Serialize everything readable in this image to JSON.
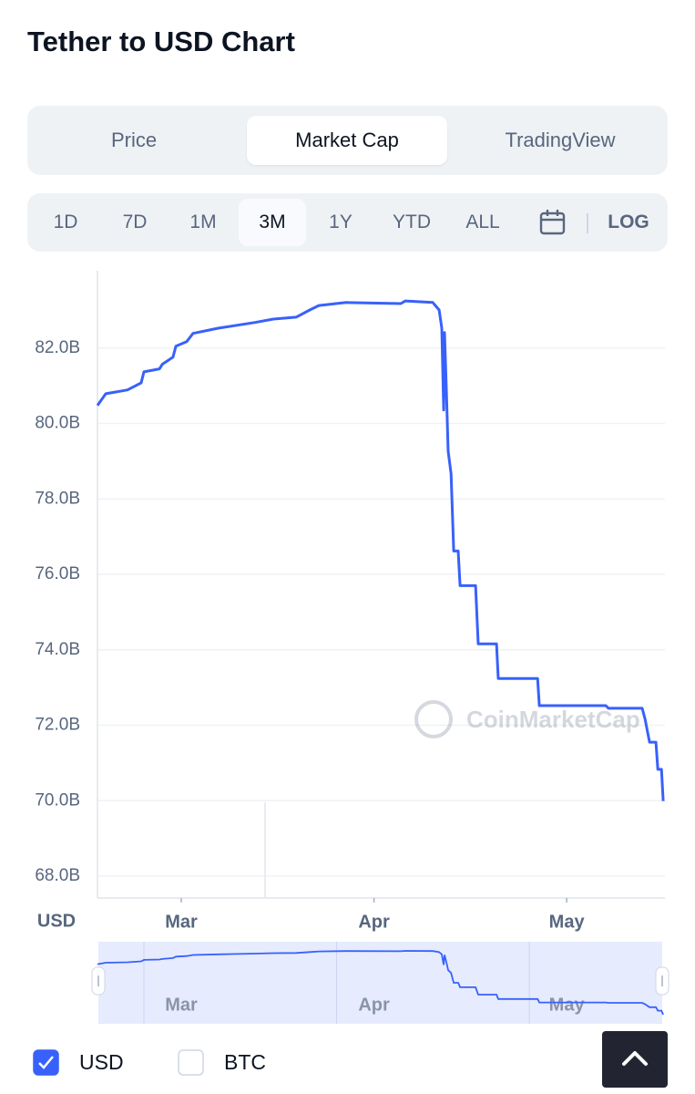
{
  "header": {
    "title": "Tether to USD Chart"
  },
  "tabs": {
    "items": [
      "Price",
      "Market Cap",
      "TradingView"
    ],
    "active": 1
  },
  "ranges": {
    "items": [
      "1D",
      "7D",
      "1M",
      "3M",
      "1Y",
      "YTD",
      "ALL"
    ],
    "active": 3,
    "log": "LOG"
  },
  "chart_data": {
    "type": "line",
    "y_label": "USD",
    "watermark": "CoinMarketCap",
    "x": [
      2.565,
      2.608,
      2.721,
      2.792,
      2.806,
      2.887,
      2.901,
      2.957,
      2.972,
      3.028,
      3.061,
      3.194,
      3.383,
      3.478,
      3.596,
      3.667,
      3.714,
      3.856,
      4.139,
      4.163,
      4.305,
      4.338,
      4.352,
      4.362,
      4.366,
      4.376,
      4.385,
      4.4,
      4.414,
      4.437,
      4.447,
      4.527,
      4.541,
      4.636,
      4.645,
      4.849,
      4.858,
      5.203,
      5.217,
      5.392,
      5.407,
      5.43,
      5.463,
      5.473,
      5.492,
      5.501
    ],
    "series": [
      {
        "name": "USD",
        "color": "#3861fb",
        "values": [
          80.48,
          80.79,
          80.89,
          81.08,
          81.37,
          81.45,
          81.57,
          81.76,
          82.05,
          82.17,
          82.39,
          82.53,
          82.68,
          82.77,
          82.82,
          83.01,
          83.13,
          83.21,
          83.18,
          83.25,
          83.21,
          83.01,
          82.53,
          80.36,
          82.41,
          80.84,
          79.27,
          78.67,
          76.62,
          76.62,
          75.7,
          75.7,
          74.16,
          74.16,
          73.24,
          73.24,
          72.52,
          72.52,
          72.45,
          72.45,
          72.16,
          71.55,
          71.55,
          70.83,
          70.83,
          69.99
        ]
      }
    ],
    "xlim": [
      2.565,
      5.51
    ],
    "ylim": [
      67.42,
      84.05
    ],
    "xticks": [
      {
        "value": 3,
        "label": "Mar"
      },
      {
        "value": 4,
        "label": "Apr"
      },
      {
        "value": 5,
        "label": "May"
      }
    ],
    "yticks": [
      {
        "value": 68,
        "label": "68.0B"
      },
      {
        "value": 70,
        "label": "70.0B"
      },
      {
        "value": 72,
        "label": "72.0B"
      },
      {
        "value": 74,
        "label": "74.0B"
      },
      {
        "value": 76,
        "label": "76.0B"
      },
      {
        "value": 78,
        "label": "78.0B"
      },
      {
        "value": 80,
        "label": "80.0B"
      },
      {
        "value": 82,
        "label": "82.0B"
      }
    ],
    "grid": true
  },
  "legend": {
    "other": "BTC",
    "checked": [
      true,
      false
    ]
  }
}
